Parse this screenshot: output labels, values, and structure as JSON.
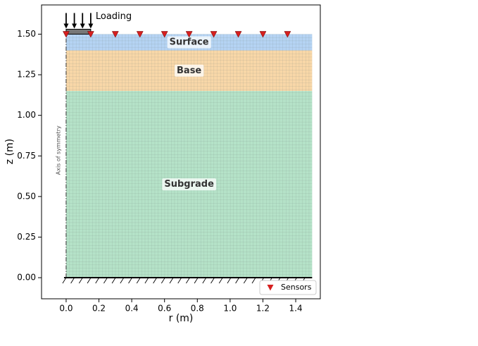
{
  "chart_data": {
    "type": "layers",
    "x_label": "r (m)",
    "y_label": "z (m)",
    "xlim": [
      -0.15,
      1.55
    ],
    "ylim": [
      -0.13,
      1.68
    ],
    "xticks": [
      {
        "value": 0,
        "label": "0.0"
      },
      {
        "value": 0.2,
        "label": "0.2"
      },
      {
        "value": 0.4,
        "label": "0.4"
      },
      {
        "value": 0.6,
        "label": "0.6"
      },
      {
        "value": 0.8,
        "label": "0.8"
      },
      {
        "value": 1.0,
        "label": "1.0"
      },
      {
        "value": 1.2,
        "label": "1.2"
      },
      {
        "value": 1.4,
        "label": "1.4"
      }
    ],
    "yticks": [
      {
        "value": 0,
        "label": "0.00"
      },
      {
        "value": 0.25,
        "label": "0.25"
      },
      {
        "value": 0.5,
        "label": "0.50"
      },
      {
        "value": 0.75,
        "label": "0.75"
      },
      {
        "value": 1.0,
        "label": "1.00"
      },
      {
        "value": 1.25,
        "label": "1.25"
      },
      {
        "value": 1.5,
        "label": "1.50"
      }
    ],
    "layers": [
      {
        "name": "Surface",
        "color": "#b5d3f3",
        "r": [
          0,
          1.5
        ],
        "z": [
          1.4,
          1.5
        ]
      },
      {
        "name": "Base",
        "color": "#f8d7a8",
        "r": [
          0,
          1.5
        ],
        "z": [
          1.15,
          1.4
        ]
      },
      {
        "name": "Subgrade",
        "color": "#b5e2c8",
        "r": [
          0,
          1.5
        ],
        "z": [
          0,
          1.15
        ]
      }
    ],
    "loading": {
      "label": "Loading",
      "r": [
        0,
        0.15
      ],
      "z": 1.5
    },
    "axis_label": "Axis of symmetry",
    "series": [
      {
        "name": "Sensors",
        "color": "#d61f1f",
        "x": [
          0,
          0.15,
          0.3,
          0.45,
          0.6,
          0.75,
          0.9,
          1.05,
          1.2,
          1.35
        ],
        "values": [
          1.5,
          1.5,
          1.5,
          1.5,
          1.5,
          1.5,
          1.5,
          1.5,
          1.5,
          1.5
        ]
      }
    ],
    "legend": "lower right"
  }
}
